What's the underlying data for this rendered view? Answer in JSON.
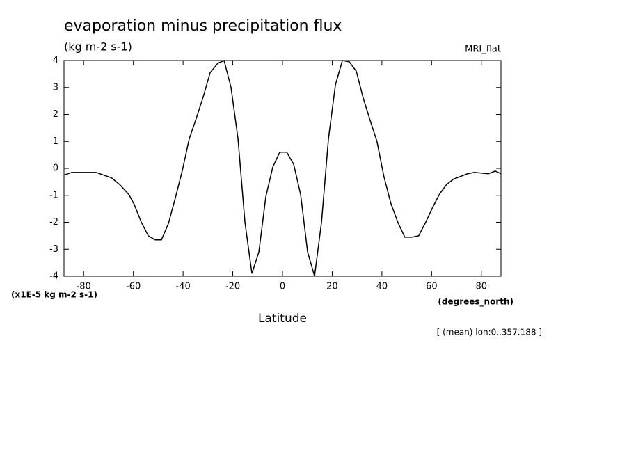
{
  "chart_data": {
    "type": "line",
    "title": "evaporation minus precipitation flux",
    "subtitle": "(kg m-2 s-1)",
    "dataset": "MRI_flat",
    "y_multiplier_label": "(x1E-5 kg m-2 s-1)",
    "x_units": "(degrees_north)",
    "x_label": "Latitude",
    "note": "[ (mean) lon:0..357.188 ]",
    "xlim": [
      -87.9,
      87.9
    ],
    "ylim": [
      -4,
      4
    ],
    "xticks": [
      -80,
      -60,
      -40,
      -20,
      0,
      20,
      40,
      60,
      80
    ],
    "yticks": [
      -4,
      -3,
      -2,
      -1,
      0,
      1,
      2,
      3,
      4
    ],
    "series": [
      {
        "color": "#000000",
        "x": [
          -87.9,
          -84.8,
          -75,
          -68.8,
          -65.5,
          -61.8,
          -59.6,
          -56.8,
          -54,
          -51.2,
          -48.7,
          -45.9,
          -43,
          -40.3,
          -37.5,
          -34.7,
          -31.9,
          -29.1,
          -26,
          -23.5,
          -20.7,
          -17.9,
          -15.1,
          -12.3,
          -9.5,
          -6.7,
          -3.9,
          -1.1,
          1.7,
          4.5,
          7.3,
          10.1,
          12.9,
          15.7,
          18.5,
          21.3,
          24.1,
          26.9,
          29.7,
          32.5,
          35.2,
          38,
          40.8,
          43.6,
          46.4,
          49.2,
          52,
          54.8,
          57.6,
          60.4,
          63.2,
          66,
          68.8,
          74.4,
          77.2,
          82.8,
          85.6,
          87.9
        ],
        "values": [
          -0.25,
          -0.15,
          -0.15,
          -0.35,
          -0.6,
          -0.97,
          -1.35,
          -2.0,
          -2.5,
          -2.65,
          -2.65,
          -2.05,
          -1.06,
          -0.08,
          1.1,
          1.85,
          2.65,
          3.55,
          3.9,
          4.0,
          3.0,
          1.1,
          -2.0,
          -3.9,
          -3.1,
          -1.05,
          0.05,
          0.6,
          0.6,
          0.15,
          -0.97,
          -3.1,
          -4.0,
          -2.0,
          1.1,
          3.1,
          4.0,
          3.95,
          3.6,
          2.6,
          1.8,
          1.0,
          -0.3,
          -1.3,
          -2.0,
          -2.55,
          -2.55,
          -2.5,
          -2.0,
          -1.45,
          -0.95,
          -0.6,
          -0.4,
          -0.2,
          -0.15,
          -0.2,
          -0.1,
          -0.2
        ]
      }
    ]
  }
}
